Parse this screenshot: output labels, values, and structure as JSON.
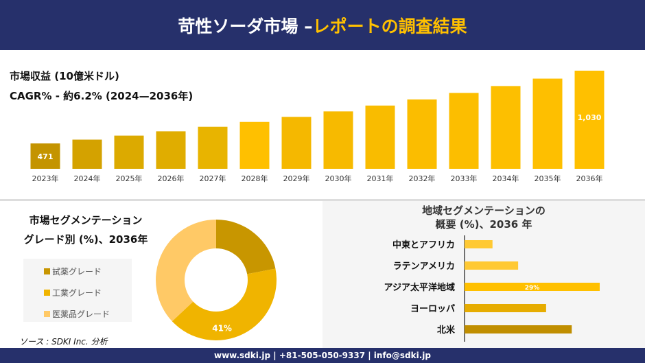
{
  "header": {
    "title_main": "苛性ソーダ市場 –",
    "title_highlight": "レポートの調査結果"
  },
  "revenue": {
    "label": "市場収益 (10億米ドル)",
    "cagr": "CAGR% - 約6.2% (2024—2036年)"
  },
  "chart_data": [
    {
      "type": "bar",
      "categories": [
        "2023年",
        "2024年",
        "2025年",
        "2026年",
        "2027年",
        "2028年",
        "2029年",
        "2030年",
        "2031年",
        "2032年",
        "2033年",
        "2034年",
        "2035年",
        "2036年"
      ],
      "values": [
        471,
        500,
        531,
        564,
        599,
        636,
        675,
        717,
        762,
        809,
        859,
        912,
        969,
        1030
      ],
      "data_labels": {
        "0": "471",
        "13": "1,030"
      },
      "color": "#ffc000"
    },
    {
      "type": "pie",
      "title": "市場セグメンテーション グレード別 (%)、2036年",
      "labels": [
        "試薬グレード",
        "工業グレード",
        "医薬品グレード"
      ],
      "values": [
        22,
        41,
        37
      ],
      "colors": [
        "#c89600",
        "#f0b400",
        "#ffc966"
      ],
      "data_labels": {
        "1": "41%"
      },
      "donut": true
    },
    {
      "type": "bar",
      "orientation": "horizontal",
      "title": "地域セグメンテーションの 概要 (%)、2036 年",
      "categories": [
        "中東とアフリカ",
        "ラテンアメリカ",
        "アジア太平洋地域",
        "ヨーロッパ",
        "北米"
      ],
      "values": [
        6,
        11.5,
        29,
        17.5,
        23
      ],
      "data_labels": {
        "2": "29%"
      },
      "colors": [
        "#ffc933",
        "#ffc933",
        "#ffc000",
        "#e6ac00",
        "#c08e00"
      ]
    }
  ],
  "segment": {
    "title1": "市場セグメンテーション",
    "title2": "グレード別 (%)、2036年"
  },
  "region": {
    "title1": "地域セグメンテーションの",
    "title2": "概要 (%)、2036 年"
  },
  "source": "ソース : SDKI Inc. 分析",
  "footer": "www.sdki.jp | +81-505-050-9337 | info@sdki.jp"
}
